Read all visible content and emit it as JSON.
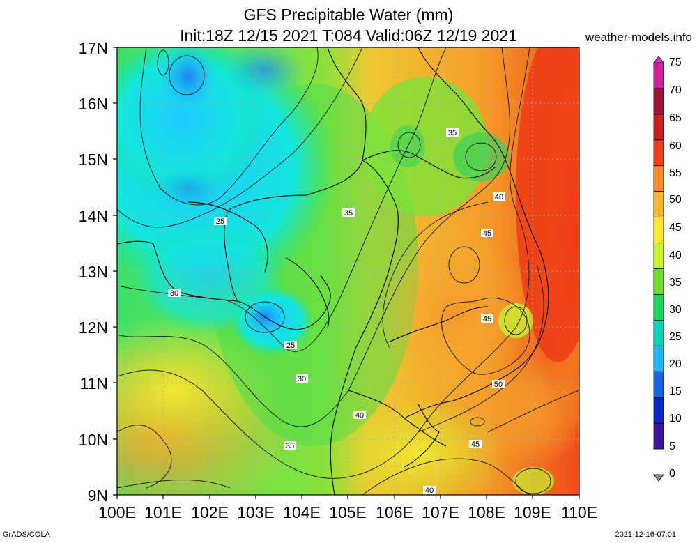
{
  "title_line1": "GFS Precipitable Water (mm)",
  "title_line2": "Init:18Z 12/15 2021 T:084 Valid:06Z 12/19 2021",
  "site": "weather-models.info",
  "footer_left": "GrADS/COLA",
  "footer_right": "2021-12-16-07:01",
  "lat_labels": [
    "17N",
    "16N",
    "15N",
    "14N",
    "13N",
    "12N",
    "11N",
    "10N",
    "9N"
  ],
  "lon_labels": [
    "100E",
    "101E",
    "102E",
    "103E",
    "104E",
    "105E",
    "106E",
    "107E",
    "108E",
    "109E",
    "110E"
  ],
  "colorbar": {
    "labels": [
      "75",
      "70",
      "65",
      "60",
      "55",
      "50",
      "45",
      "40",
      "35",
      "30",
      "25",
      "20",
      "15",
      "10",
      "5",
      "0"
    ],
    "colors": [
      "#ee30ee",
      "#d2209c",
      "#a0143c",
      "#c81e1e",
      "#f03c14",
      "#fa8c28",
      "#f5b432",
      "#fae632",
      "#c8f032",
      "#6edc32",
      "#1ed25a",
      "#0ad2b4",
      "#1eb4ff",
      "#1464e6",
      "#0a28c8",
      "#3c14a0",
      "#8a8a8a"
    ]
  },
  "contour_labels": [
    {
      "text": "25"
    },
    {
      "text": "25"
    },
    {
      "text": "30"
    },
    {
      "text": "30"
    },
    {
      "text": "35"
    },
    {
      "text": "35"
    },
    {
      "text": "35"
    },
    {
      "text": "40"
    },
    {
      "text": "40"
    },
    {
      "text": "40"
    },
    {
      "text": "45"
    },
    {
      "text": "45"
    },
    {
      "text": "45"
    },
    {
      "text": "50"
    }
  ]
}
